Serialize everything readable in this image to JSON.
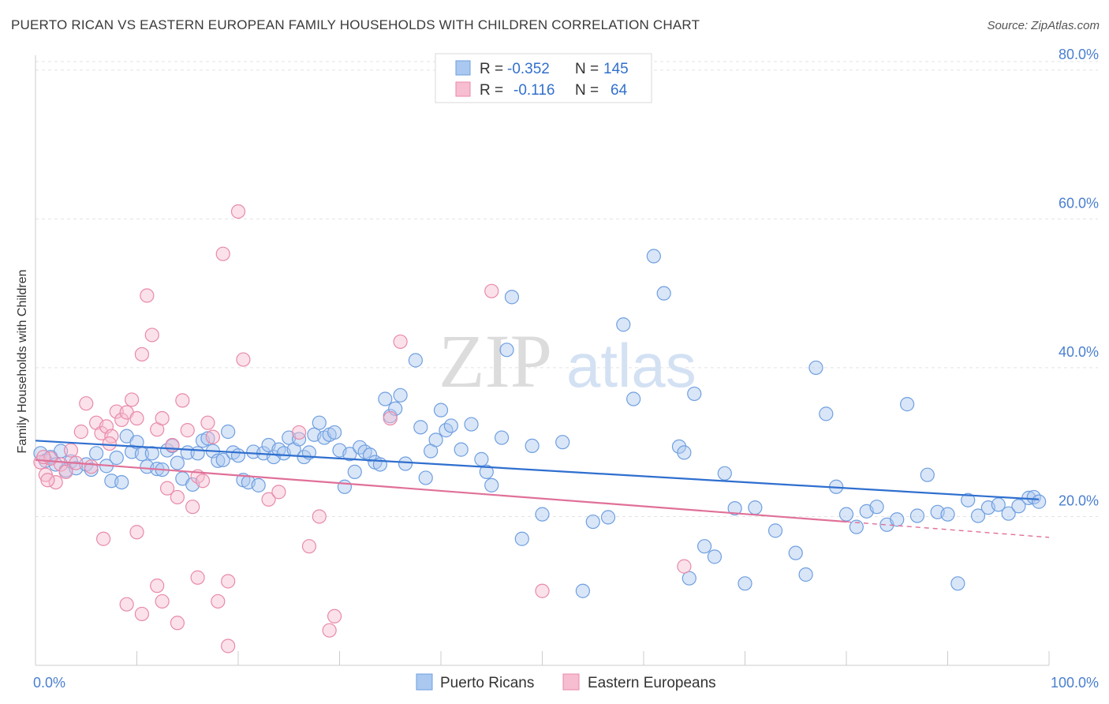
{
  "header": {
    "title": "PUERTO RICAN VS EASTERN EUROPEAN FAMILY HOUSEHOLDS WITH CHILDREN CORRELATION CHART",
    "source": "Source: ZipAtlas.com"
  },
  "watermark": {
    "zip": "ZIP",
    "atlas": "atlas"
  },
  "legend": {
    "rows": [
      {
        "r_label": "R =",
        "r_value": "-0.352",
        "n_label": "N =",
        "n_value": "145",
        "color": "#aac8f0",
        "stroke": "#6f9fe0"
      },
      {
        "r_label": "R =",
        "r_value": "-0.116",
        "n_label": "N =",
        "n_value": "64",
        "color": "#f7bdd0",
        "stroke": "#e88aaa"
      }
    ]
  },
  "bottom_legend": [
    "Puerto Ricans",
    "Eastern Europeans"
  ],
  "chart_data": {
    "type": "scatter",
    "title": "PUERTO RICAN VS EASTERN EUROPEAN FAMILY HOUSEHOLDS WITH CHILDREN CORRELATION CHART",
    "xlabel": "",
    "ylabel": "Family Households with Children",
    "xlim": [
      0,
      100
    ],
    "ylim": [
      0,
      82
    ],
    "x_tick_labels": [
      "0.0%",
      "100.0%"
    ],
    "y_ticks": [
      20,
      40,
      60,
      80
    ],
    "y_tick_labels": [
      "20.0%",
      "40.0%",
      "60.0%",
      "80.0%"
    ],
    "grid": "horizontal dashed",
    "legend_position": "top-center",
    "series": [
      {
        "name": "Puerto Ricans",
        "color": "#aac8f0",
        "stroke": "#6f9fe0",
        "trend_color": "#2f6fcf",
        "trend": {
          "x0": 0,
          "y0": 30.2,
          "x1": 99,
          "y1": 22.3
        },
        "points": [
          [
            0.5,
            28.5
          ],
          [
            1,
            27.5
          ],
          [
            1.5,
            28
          ],
          [
            2,
            27
          ],
          [
            2.5,
            28.8
          ],
          [
            3,
            26.2
          ],
          [
            3.5,
            27.4
          ],
          [
            4,
            26.5
          ],
          [
            5,
            27
          ],
          [
            5.5,
            26.3
          ],
          [
            6,
            28.5
          ],
          [
            7,
            26.8
          ],
          [
            7.5,
            24.8
          ],
          [
            8,
            27.9
          ],
          [
            8.5,
            24.6
          ],
          [
            9,
            30.8
          ],
          [
            9.5,
            28.7
          ],
          [
            10,
            30
          ],
          [
            10.5,
            28.4
          ],
          [
            11,
            26.7
          ],
          [
            11.5,
            28.5
          ],
          [
            12,
            26.4
          ],
          [
            12.5,
            26.3
          ],
          [
            13,
            28.9
          ],
          [
            13.5,
            29.5
          ],
          [
            14,
            27.2
          ],
          [
            14.5,
            25.1
          ],
          [
            15,
            28.6
          ],
          [
            15.5,
            24.3
          ],
          [
            16,
            28.5
          ],
          [
            16.5,
            30.2
          ],
          [
            17,
            30.5
          ],
          [
            17.5,
            28.8
          ],
          [
            18,
            27.5
          ],
          [
            18.5,
            27.6
          ],
          [
            19,
            31.4
          ],
          [
            19.5,
            28.6
          ],
          [
            20,
            28.2
          ],
          [
            20.5,
            24.9
          ],
          [
            21,
            24.6
          ],
          [
            21.5,
            28.7
          ],
          [
            22,
            24.2
          ],
          [
            22.5,
            28.5
          ],
          [
            23,
            29.6
          ],
          [
            23.5,
            28
          ],
          [
            24,
            29
          ],
          [
            24.5,
            28.5
          ],
          [
            25,
            30.6
          ],
          [
            25.5,
            29
          ],
          [
            26,
            30.4
          ],
          [
            26.5,
            28
          ],
          [
            27,
            28.6
          ],
          [
            27.5,
            31
          ],
          [
            28,
            32.6
          ],
          [
            28.5,
            30.6
          ],
          [
            29,
            31
          ],
          [
            29.5,
            31.3
          ],
          [
            30,
            28.9
          ],
          [
            30.5,
            24
          ],
          [
            31,
            28.4
          ],
          [
            31.5,
            26
          ],
          [
            32,
            29.3
          ],
          [
            32.5,
            28.7
          ],
          [
            33,
            28.3
          ],
          [
            33.5,
            27.3
          ],
          [
            34,
            27
          ],
          [
            34.5,
            35.8
          ],
          [
            35,
            33.5
          ],
          [
            35.5,
            34.5
          ],
          [
            36,
            36.3
          ],
          [
            36.5,
            27.1
          ],
          [
            37.5,
            41
          ],
          [
            38,
            32
          ],
          [
            38.5,
            25.2
          ],
          [
            39,
            28.8
          ],
          [
            39.5,
            30.3
          ],
          [
            40,
            34.3
          ],
          [
            40.5,
            31.6
          ],
          [
            41,
            32.2
          ],
          [
            42,
            29
          ],
          [
            43,
            32.4
          ],
          [
            44,
            27.7
          ],
          [
            44.5,
            26
          ],
          [
            45,
            24.2
          ],
          [
            46,
            30.6
          ],
          [
            46.5,
            42.4
          ],
          [
            47,
            49.5
          ],
          [
            48,
            17
          ],
          [
            49,
            29.5
          ],
          [
            50,
            20.3
          ],
          [
            52,
            30
          ],
          [
            54,
            10
          ],
          [
            55,
            19.3
          ],
          [
            56.5,
            19.9
          ],
          [
            58,
            45.8
          ],
          [
            59,
            35.8
          ],
          [
            61,
            55
          ],
          [
            62,
            50
          ],
          [
            63.5,
            29.4
          ],
          [
            64,
            28.6
          ],
          [
            64.5,
            11.7
          ],
          [
            65,
            36.5
          ],
          [
            66,
            16
          ],
          [
            67,
            14.6
          ],
          [
            68,
            25.8
          ],
          [
            69,
            21.1
          ],
          [
            70,
            11
          ],
          [
            71,
            21.2
          ],
          [
            73,
            18.1
          ],
          [
            75,
            15.1
          ],
          [
            76,
            12.2
          ],
          [
            77,
            40
          ],
          [
            78,
            33.8
          ],
          [
            79,
            24
          ],
          [
            80,
            20.3
          ],
          [
            81,
            18.6
          ],
          [
            82,
            20.7
          ],
          [
            83,
            21.3
          ],
          [
            84,
            18.9
          ],
          [
            85,
            19.6
          ],
          [
            86,
            35.1
          ],
          [
            87,
            20.1
          ],
          [
            88,
            25.6
          ],
          [
            89,
            20.6
          ],
          [
            90,
            20.3
          ],
          [
            91,
            11
          ],
          [
            92,
            22.2
          ],
          [
            93,
            20.1
          ],
          [
            94,
            21.2
          ],
          [
            95,
            21.6
          ],
          [
            96,
            20.4
          ],
          [
            97,
            21.4
          ],
          [
            98,
            22.5
          ],
          [
            98.5,
            22.6
          ],
          [
            99,
            22
          ]
        ]
      },
      {
        "name": "Eastern Europeans",
        "color": "#f7bdd0",
        "stroke": "#e88aaa",
        "trend_color": "#e07098",
        "trend": {
          "x0": 0,
          "y0": 27.6,
          "x1": 80,
          "y1": 19.3
        },
        "trend_ext": {
          "x0": 80,
          "y0": 19.3,
          "x1": 100,
          "y1": 17.2
        },
        "points": [
          [
            0.5,
            27.3
          ],
          [
            1,
            25.6
          ],
          [
            1.5,
            27.8
          ],
          [
            2,
            24.6
          ],
          [
            2.5,
            27
          ],
          [
            3,
            26
          ],
          [
            3.5,
            28.9
          ],
          [
            4,
            27.2
          ],
          [
            4.5,
            31.4
          ],
          [
            5,
            35.2
          ],
          [
            5.5,
            26.7
          ],
          [
            6,
            32.6
          ],
          [
            6.5,
            31.2
          ],
          [
            7,
            32.1
          ],
          [
            7.5,
            30.8
          ],
          [
            8,
            34.1
          ],
          [
            8.5,
            33
          ],
          [
            9,
            34
          ],
          [
            9.5,
            35.7
          ],
          [
            10,
            33.2
          ],
          [
            10.5,
            41.8
          ],
          [
            11,
            49.7
          ],
          [
            11.5,
            44.4
          ],
          [
            12,
            31.7
          ],
          [
            12.5,
            33.2
          ],
          [
            13,
            23.8
          ],
          [
            13.5,
            29.6
          ],
          [
            14,
            22.6
          ],
          [
            14.5,
            35.6
          ],
          [
            15,
            31.6
          ],
          [
            15.5,
            21.3
          ],
          [
            16,
            25.4
          ],
          [
            16.5,
            24.8
          ],
          [
            17,
            32.6
          ],
          [
            17.5,
            30.7
          ],
          [
            18,
            8.6
          ],
          [
            18.5,
            55.3
          ],
          [
            19,
            11.3
          ],
          [
            20,
            61
          ],
          [
            20.5,
            41.1
          ],
          [
            9,
            8.2
          ],
          [
            10,
            17.9
          ],
          [
            10.5,
            6.9
          ],
          [
            12,
            10.7
          ],
          [
            12.5,
            8.6
          ],
          [
            14,
            5.7
          ],
          [
            16,
            11.8
          ],
          [
            19,
            2.6
          ],
          [
            23,
            22.3
          ],
          [
            24,
            23.3
          ],
          [
            26,
            31.3
          ],
          [
            27,
            16
          ],
          [
            28,
            20
          ],
          [
            29,
            4.7
          ],
          [
            29.5,
            6.6
          ],
          [
            35,
            33.2
          ],
          [
            36,
            43.5
          ],
          [
            45,
            50.3
          ],
          [
            50,
            10
          ],
          [
            64,
            13.3
          ],
          [
            0.8,
            28
          ],
          [
            1.2,
            24.9
          ],
          [
            6.7,
            17
          ],
          [
            7.3,
            29.8
          ]
        ]
      }
    ]
  }
}
